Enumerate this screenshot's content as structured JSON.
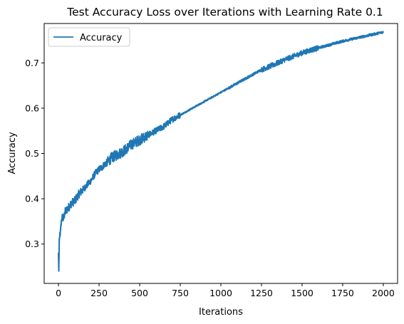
{
  "chart_data": {
    "type": "line",
    "title": "Test Accuracy Loss over Iterations with Learning Rate 0.1",
    "xlabel": "Iterations",
    "ylabel": "Accuracy",
    "xlim": [
      -88,
      2088
    ],
    "ylim": [
      0.213,
      0.787
    ],
    "xticks": [
      0,
      250,
      500,
      750,
      1000,
      1250,
      1500,
      1750,
      2000
    ],
    "yticks": [
      0.3,
      0.4,
      0.5,
      0.6,
      0.7
    ],
    "xtick_labels": [
      "0",
      "250",
      "500",
      "750",
      "1000",
      "1250",
      "1500",
      "1750",
      "2000"
    ],
    "ytick_labels": [
      "0.3",
      "0.4",
      "0.5",
      "0.6",
      "0.7"
    ],
    "grid": false,
    "legend_position": "top-left",
    "series": [
      {
        "name": "Accuracy",
        "color": "#1f77b4",
        "x": [
          0,
          2,
          5,
          10,
          15,
          20,
          25,
          30,
          40,
          50,
          60,
          80,
          100,
          125,
          150,
          175,
          200,
          225,
          250,
          270,
          280,
          300,
          325,
          350,
          375,
          400,
          450,
          500,
          550,
          600,
          650,
          700,
          750,
          800,
          850,
          900,
          950,
          1000,
          1050,
          1100,
          1150,
          1200,
          1250,
          1300,
          1350,
          1400,
          1450,
          1500,
          1550,
          1600,
          1650,
          1700,
          1750,
          1800,
          1850,
          1900,
          1950,
          2000
        ],
        "y": [
          0.28,
          0.24,
          0.31,
          0.32,
          0.34,
          0.355,
          0.36,
          0.355,
          0.37,
          0.375,
          0.38,
          0.39,
          0.395,
          0.41,
          0.42,
          0.43,
          0.44,
          0.455,
          0.465,
          0.47,
          0.475,
          0.48,
          0.49,
          0.495,
          0.5,
          0.505,
          0.52,
          0.53,
          0.54,
          0.55,
          0.56,
          0.575,
          0.585,
          0.595,
          0.605,
          0.615,
          0.625,
          0.635,
          0.645,
          0.655,
          0.665,
          0.675,
          0.685,
          0.692,
          0.7,
          0.708,
          0.715,
          0.722,
          0.728,
          0.733,
          0.738,
          0.743,
          0.748,
          0.752,
          0.756,
          0.76,
          0.764,
          0.768
        ]
      }
    ]
  }
}
